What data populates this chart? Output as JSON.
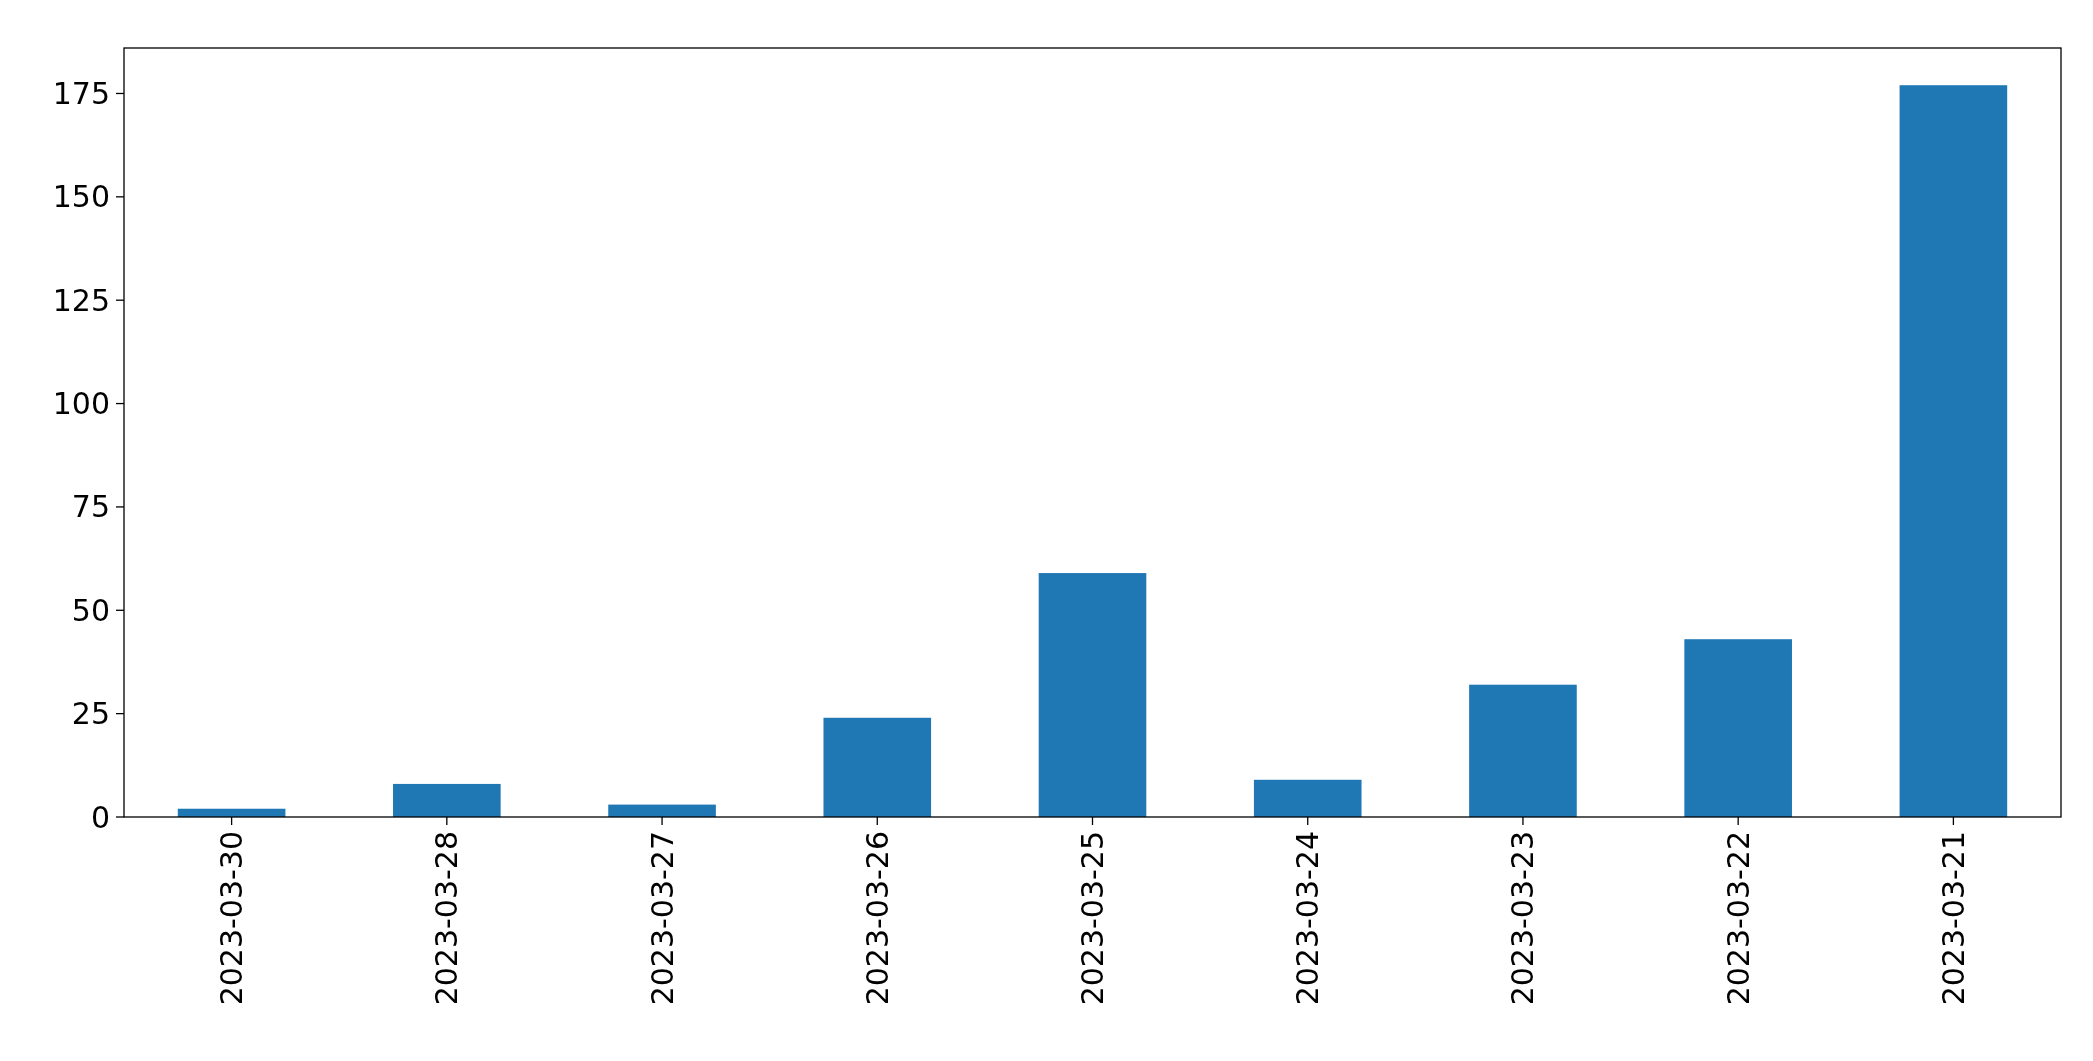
{
  "chart_data": {
    "type": "bar",
    "categories": [
      "2023-03-30",
      "2023-03-28",
      "2023-03-27",
      "2023-03-26",
      "2023-03-25",
      "2023-03-24",
      "2023-03-23",
      "2023-03-22",
      "2023-03-21"
    ],
    "values": [
      2,
      8,
      3,
      24,
      59,
      9,
      32,
      43,
      177
    ],
    "color": "#1f77b4",
    "ylim": [
      0,
      186
    ],
    "yticks": [
      0,
      25,
      50,
      75,
      100,
      125,
      150,
      175
    ],
    "grid": false
  }
}
